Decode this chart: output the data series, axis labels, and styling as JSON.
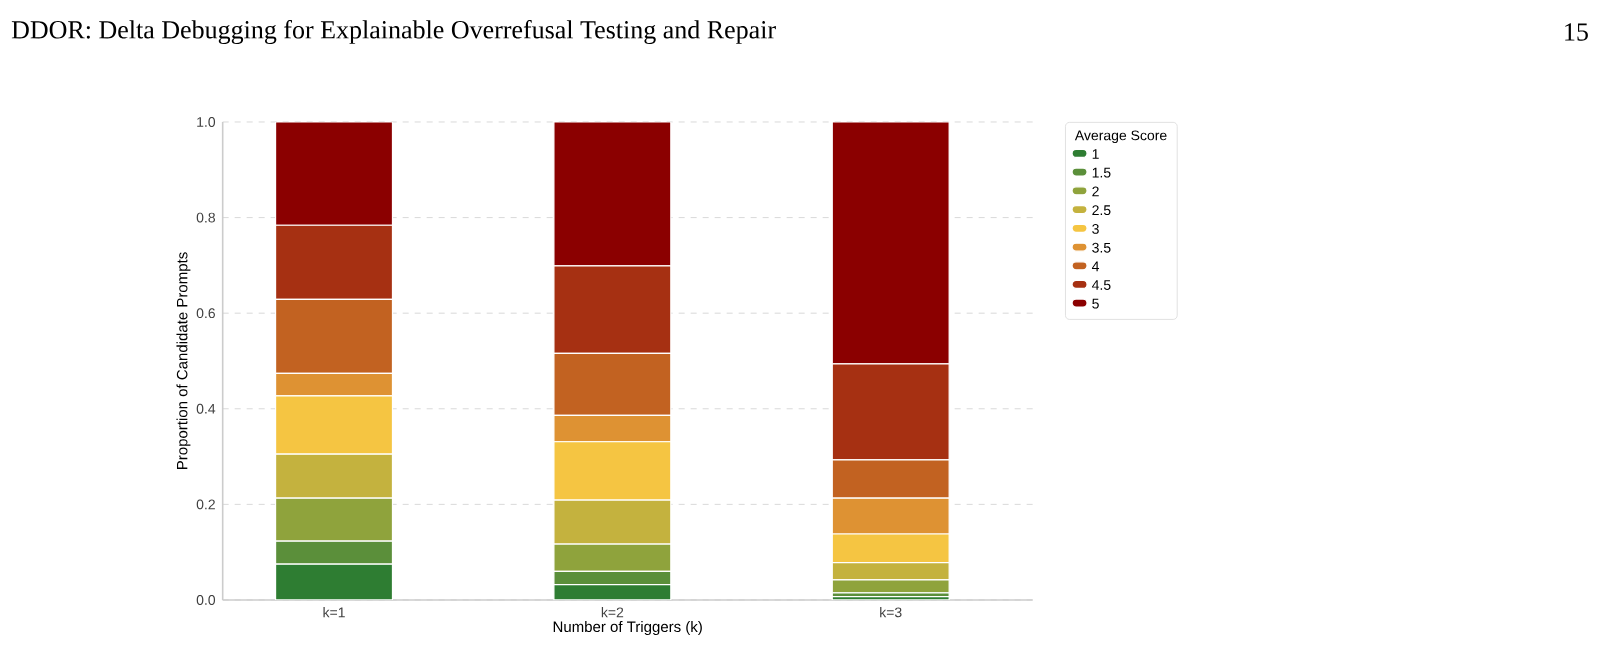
{
  "chart_data": {
    "type": "bar",
    "stacked": true,
    "title": "DDOR: Delta Debugging for Explainable Overrefusal Testing and Repair",
    "annotations": [
      "15"
    ],
    "xlabel": "Number of Triggers (k)",
    "ylabel": "Proportion of Candidate Prompts",
    "legend_title": "Average Score",
    "legend": "top right",
    "grid": "y",
    "categories": [
      "k=1",
      "k=2",
      "k=3"
    ],
    "ylim": [
      0,
      1
    ],
    "yticks": [
      {
        "value": 0,
        "label": "0.0"
      },
      {
        "value": 0.2,
        "label": "0.2"
      },
      {
        "value": 0.4,
        "label": "0.4"
      },
      {
        "value": 0.6,
        "label": "0.6"
      },
      {
        "value": 0.8,
        "label": "0.8"
      },
      {
        "value": 1,
        "label": "1.0"
      }
    ],
    "series": [
      {
        "name": "1",
        "color": "#2e7d32",
        "values": [
          0.075,
          0.032,
          0.007
        ]
      },
      {
        "name": "1.5",
        "color": "#5b8f3a",
        "values": [
          0.048,
          0.028,
          0.008
        ]
      },
      {
        "name": "2",
        "color": "#8fa33c",
        "values": [
          0.09,
          0.057,
          0.027
        ]
      },
      {
        "name": "2.5",
        "color": "#c4b23e",
        "values": [
          0.092,
          0.092,
          0.036
        ]
      },
      {
        "name": "3",
        "color": "#f5c542",
        "values": [
          0.122,
          0.122,
          0.06
        ]
      },
      {
        "name": "3.5",
        "color": "#de9233",
        "values": [
          0.047,
          0.055,
          0.075
        ]
      },
      {
        "name": "4",
        "color": "#c26221",
        "values": [
          0.155,
          0.13,
          0.08
        ]
      },
      {
        "name": "4.5",
        "color": "#a63012",
        "values": [
          0.155,
          0.183,
          0.201
        ]
      },
      {
        "name": "5",
        "color": "#8b0000",
        "values": [
          0.216,
          0.301,
          0.506
        ]
      }
    ]
  }
}
